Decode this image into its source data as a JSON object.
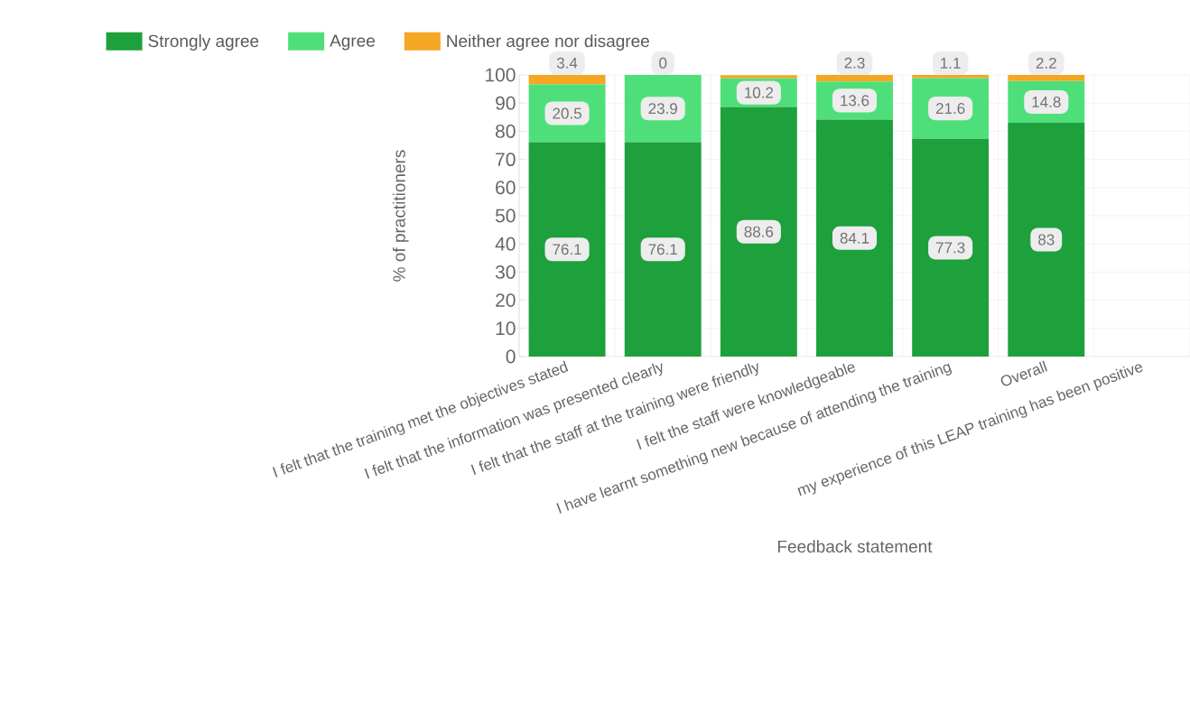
{
  "chart_data": {
    "type": "bar",
    "stacked": true,
    "xlabel": "Feedback statement",
    "ylabel": "% of practitioners",
    "categories": [
      "I felt that the training met the objectives stated",
      "I felt that the information was presented clearly",
      "I felt that the staff at the training were friendly",
      "I felt the staff were knowledgeable",
      "I have learnt something new because of attending the training",
      "Overall",
      "my experience of this LEAP training has been positive"
    ],
    "series": [
      {
        "name": "Strongly agree",
        "color": "#1ea03c",
        "values": [
          76.1,
          76.1,
          88.6,
          84.1,
          77.3,
          83,
          null
        ],
        "value_labels": [
          "76.1",
          "76.1",
          "88.6",
          "84.1",
          "77.3",
          "83",
          null
        ]
      },
      {
        "name": "Agree",
        "color": "#4fdf7a",
        "values": [
          20.5,
          23.9,
          10.2,
          13.6,
          21.6,
          14.8,
          null
        ],
        "value_labels": [
          "20.5",
          "23.9",
          "10.2",
          "13.6",
          "21.6",
          "14.8",
          null
        ]
      },
      {
        "name": "Neither agree nor disagree",
        "color": "#f5a623",
        "values": [
          3.4,
          0,
          1.1,
          2.3,
          1.1,
          2.2,
          null
        ],
        "value_labels": [
          "3.4",
          "0",
          null,
          "2.3",
          "1.1",
          "2.2",
          null
        ]
      }
    ],
    "ylim": [
      0,
      100
    ],
    "yticks": [
      0,
      10,
      20,
      30,
      40,
      50,
      60,
      70,
      80,
      90,
      100
    ],
    "grid": true,
    "legend": "top"
  }
}
